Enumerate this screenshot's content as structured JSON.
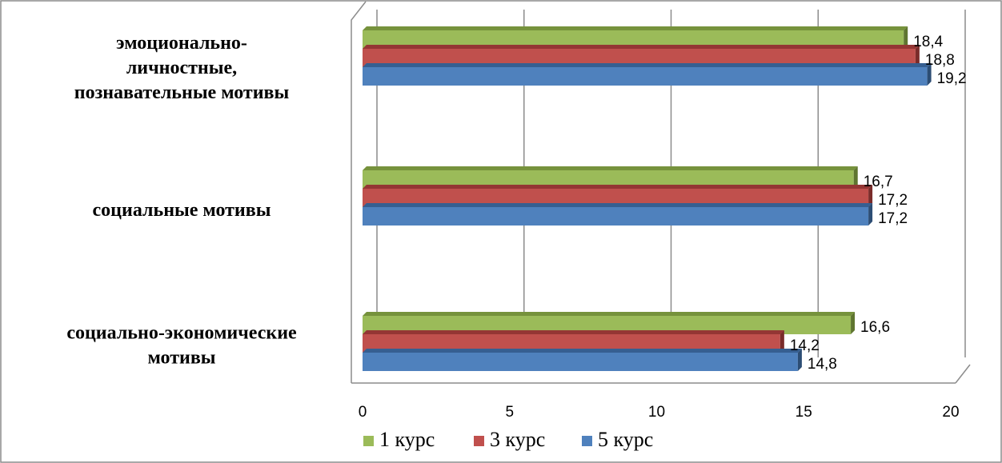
{
  "chart_data": {
    "type": "bar",
    "orientation": "horizontal",
    "categories": [
      [
        "социально-экономические",
        "мотивы"
      ],
      [
        "социальные мотивы"
      ],
      [
        "эмоционально-",
        "личностные,",
        "познавательные мотивы"
      ]
    ],
    "series": [
      {
        "name": "1 курс",
        "values": [
          16.6,
          16.7,
          18.4
        ],
        "color": "#9bbb59",
        "top_color": "#76923c",
        "side_color": "#5f7530"
      },
      {
        "name": "3 курс",
        "values": [
          14.2,
          17.2,
          18.8
        ],
        "color": "#c0504d",
        "top_color": "#943634",
        "side_color": "#7a2c2a"
      },
      {
        "name": "5 курс",
        "values": [
          14.8,
          17.2,
          19.2
        ],
        "color": "#4f81bd",
        "top_color": "#365f91",
        "side_color": "#2c4d74"
      }
    ],
    "data_labels": [
      [
        "16,6",
        "16,7",
        "18,4"
      ],
      [
        "14,2",
        "17,2",
        "18,8"
      ],
      [
        "14,8",
        "17,2",
        "19,2"
      ]
    ],
    "xlim": [
      0,
      20
    ],
    "xticks": [
      0,
      5,
      10,
      15,
      20
    ],
    "xtick_labels": [
      "0",
      "5",
      "10",
      "15",
      "20"
    ],
    "grid": true,
    "legend_position": "bottom",
    "style": "3d-clustered-bar"
  }
}
